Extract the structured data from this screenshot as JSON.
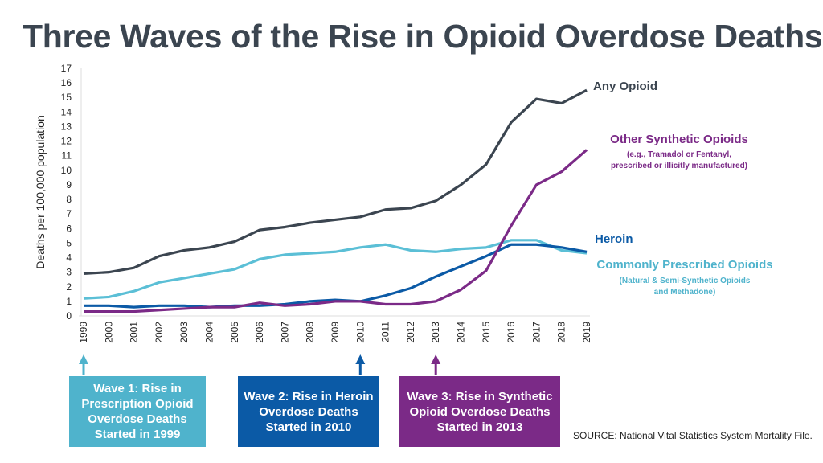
{
  "chart_data": {
    "type": "line",
    "title": "Three Waves of the Rise in Opioid Overdose Deaths",
    "ylabel": "Deaths per 100,000 population",
    "xlabel": "",
    "ylim": [
      0,
      17
    ],
    "yticks": [
      0,
      1,
      2,
      3,
      4,
      5,
      6,
      7,
      8,
      9,
      10,
      11,
      12,
      13,
      14,
      15,
      16,
      17
    ],
    "grid": false,
    "x": [
      "1999",
      "2000",
      "2001",
      "2002",
      "2003",
      "2004",
      "2005",
      "2006",
      "2007",
      "2008",
      "2009",
      "2010",
      "2011",
      "2012",
      "2013",
      "2014",
      "2015",
      "2016",
      "2017",
      "2018",
      "2019"
    ],
    "series": [
      {
        "name": "Any Opioid",
        "color": "#3b4550",
        "values": [
          2.9,
          3.0,
          3.3,
          4.1,
          4.5,
          4.7,
          5.1,
          5.9,
          6.1,
          6.4,
          6.6,
          6.8,
          7.3,
          7.4,
          7.9,
          9.0,
          10.4,
          13.3,
          14.9,
          14.6,
          15.5
        ]
      },
      {
        "name": "Commonly Prescribed Opioids",
        "sub": "(Natural & Semi-Synthetic Opioids\nand Methadone)",
        "color": "#5bbfd6",
        "values": [
          1.2,
          1.3,
          1.7,
          2.3,
          2.6,
          2.9,
          3.2,
          3.9,
          4.2,
          4.3,
          4.4,
          4.7,
          4.9,
          4.5,
          4.4,
          4.6,
          4.7,
          5.2,
          5.2,
          4.5,
          4.3
        ]
      },
      {
        "name": "Heroin",
        "color": "#0b5aa6",
        "values": [
          0.7,
          0.7,
          0.6,
          0.7,
          0.7,
          0.6,
          0.7,
          0.7,
          0.8,
          1.0,
          1.1,
          1.0,
          1.4,
          1.9,
          2.7,
          3.4,
          4.1,
          4.9,
          4.9,
          4.7,
          4.4
        ]
      },
      {
        "name": "Other Synthetic Opioids",
        "sub": "(e.g., Tramadol or Fentanyl,\nprescribed or illicitly manufactured)",
        "color": "#7b2a87",
        "values": [
          0.3,
          0.3,
          0.3,
          0.4,
          0.5,
          0.6,
          0.6,
          0.9,
          0.7,
          0.8,
          1.0,
          1.0,
          0.8,
          0.8,
          1.0,
          1.8,
          3.1,
          6.2,
          9.0,
          9.9,
          11.4
        ]
      }
    ],
    "annotations": [
      {
        "text": "Wave 1: Rise in Prescription Opioid Overdose Deaths Started in 1999",
        "year": "1999",
        "color": "#4fb3cc"
      },
      {
        "text": "Wave 2: Rise in Heroin Overdose Deaths Started in 2010",
        "year": "2010",
        "color": "#0b5aa6"
      },
      {
        "text": "Wave 3: Rise in Synthetic Opioid Overdose Deaths Started in 2013",
        "year": "2013",
        "color": "#7b2a87"
      }
    ]
  },
  "source": "SOURCE: National Vital Statistics System Mortality File."
}
